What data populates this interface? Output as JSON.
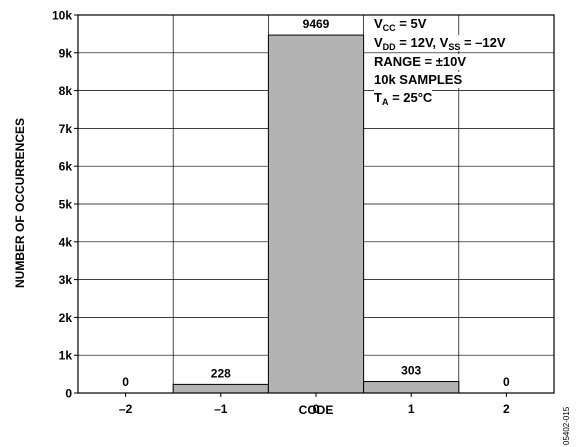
{
  "chart_data": {
    "type": "bar",
    "categories": [
      "–2",
      "–1",
      "0",
      "1",
      "2"
    ],
    "values": [
      0,
      228,
      9469,
      303,
      0
    ],
    "data_labels": [
      "0",
      "228",
      "9469",
      "303",
      "0"
    ],
    "xlabel": "CODE",
    "ylabel": "NUMBER OF OCCURRENCES",
    "ylim": [
      0,
      10000
    ],
    "yticks": [
      0,
      1000,
      2000,
      3000,
      4000,
      5000,
      6000,
      7000,
      8000,
      9000,
      10000
    ],
    "ytick_labels": [
      "0",
      "1k",
      "2k",
      "3k",
      "4k",
      "5k",
      "6k",
      "7k",
      "8k",
      "9k",
      "10k"
    ],
    "grid": true,
    "bar_color": "#b3b3b3",
    "annotation": {
      "vcc": {
        "pre": "V",
        "sub": "CC",
        "post": " = 5V"
      },
      "vdd": {
        "pre": "V",
        "sub": "DD",
        "mid": " = 12V, V",
        "sub2": "SS",
        "post": " = –12V"
      },
      "range": "RANGE = ±10V",
      "samples": "10k SAMPLES",
      "ta": {
        "pre": "T",
        "sub": "A",
        "post": " = 25°C"
      }
    }
  },
  "figure_id": "05402-015"
}
